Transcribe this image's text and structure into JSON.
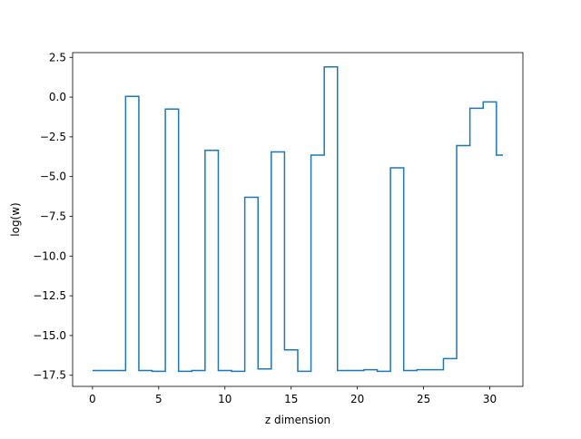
{
  "chart_data": {
    "type": "line",
    "drawstyle": "steps-mid",
    "xlabel": "z dimension",
    "ylabel": "log(w)",
    "xlim": [
      -1.5,
      32.5
    ],
    "ylim": [
      -18.2,
      2.8
    ],
    "grid": false,
    "xticks": [
      0,
      5,
      10,
      15,
      20,
      25,
      30
    ],
    "xtick_labels": [
      "0",
      "5",
      "10",
      "15",
      "20",
      "25",
      "30"
    ],
    "yticks": [
      2.5,
      0.0,
      -2.5,
      -5.0,
      -7.5,
      -10.0,
      -12.5,
      -15.0,
      -17.5
    ],
    "ytick_labels": [
      "2.5",
      "0.0",
      "−2.5",
      "−5.0",
      "−7.5",
      "−10.0",
      "−12.5",
      "−15.0",
      "−17.5"
    ],
    "series": [
      {
        "color": "#1f77b4",
        "x": [
          0,
          1,
          2,
          3,
          4,
          5,
          6,
          7,
          8,
          9,
          10,
          11,
          12,
          13,
          14,
          15,
          16,
          17,
          18,
          19,
          20,
          21,
          22,
          23,
          24,
          25,
          26,
          27,
          28,
          29,
          30,
          31
        ],
        "values": [
          -17.2,
          -17.2,
          -17.2,
          0.05,
          -17.2,
          -17.25,
          -0.75,
          -17.25,
          -17.2,
          -3.35,
          -17.2,
          -17.25,
          -6.3,
          -17.1,
          -3.45,
          -15.9,
          -17.25,
          -3.65,
          1.9,
          -17.2,
          -17.2,
          -17.15,
          -17.25,
          -4.45,
          -17.2,
          -17.15,
          -17.15,
          -16.45,
          -3.05,
          -0.7,
          -0.3,
          -3.65
        ]
      }
    ]
  }
}
